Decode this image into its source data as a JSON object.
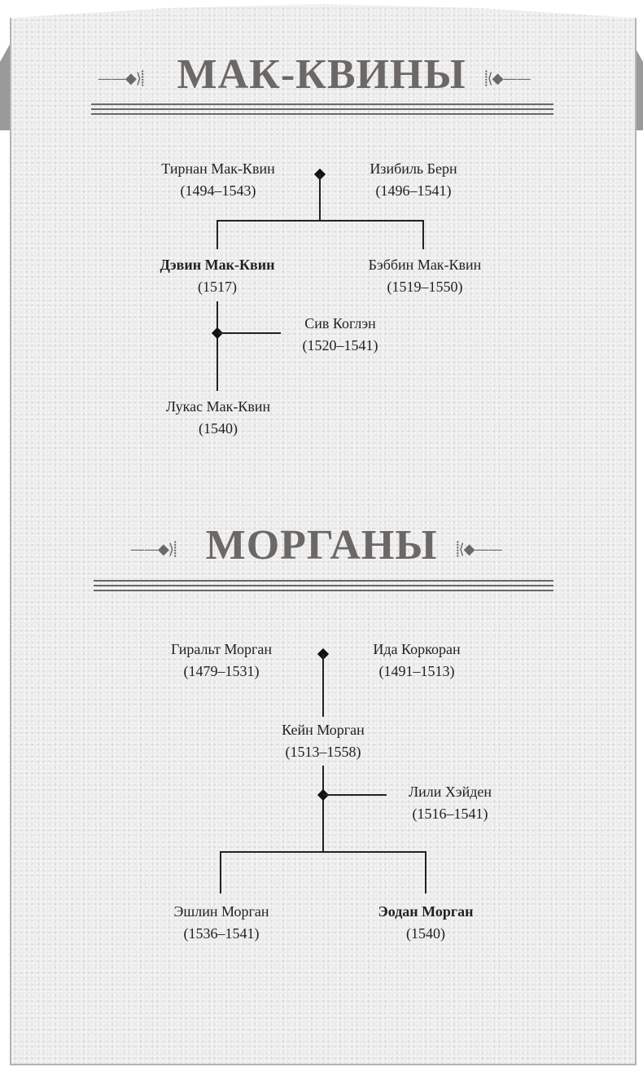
{
  "sections": [
    {
      "title": "МАК-КВИНЫ",
      "people": [
        {
          "name": "Тирнан Мак-Квин",
          "dates": "(1494–1543)"
        },
        {
          "name": "Изибиль Берн",
          "dates": "(1496–1541)"
        },
        {
          "name": "Дэвин Мак-Квин",
          "dates": "(1517)",
          "bold": true
        },
        {
          "name": "Бэббин Мак-Квин",
          "dates": "(1519–1550)"
        },
        {
          "name": "Сив Коглэн",
          "dates": "(1520–1541)"
        },
        {
          "name": "Лукас Мак-Квин",
          "dates": "(1540)"
        }
      ]
    },
    {
      "title": "МОРГАНЫ",
      "people": [
        {
          "name": "Гиральт Морган",
          "dates": "(1479–1531)"
        },
        {
          "name": "Ида Коркоран",
          "dates": "(1491–1513)"
        },
        {
          "name": "Кейн Морган",
          "dates": "(1513–1558)"
        },
        {
          "name": "Лили Хэйден",
          "dates": "(1516–1541)"
        },
        {
          "name": "Эшлин Морган",
          "dates": "(1536–1541)"
        },
        {
          "name": "Эодан Морган",
          "dates": "(1540)",
          "bold": true
        }
      ]
    }
  ],
  "colors": {
    "title": "#6b6866",
    "lines": "#222222",
    "paper": "#ececec",
    "frame": "#9a9a9a"
  }
}
